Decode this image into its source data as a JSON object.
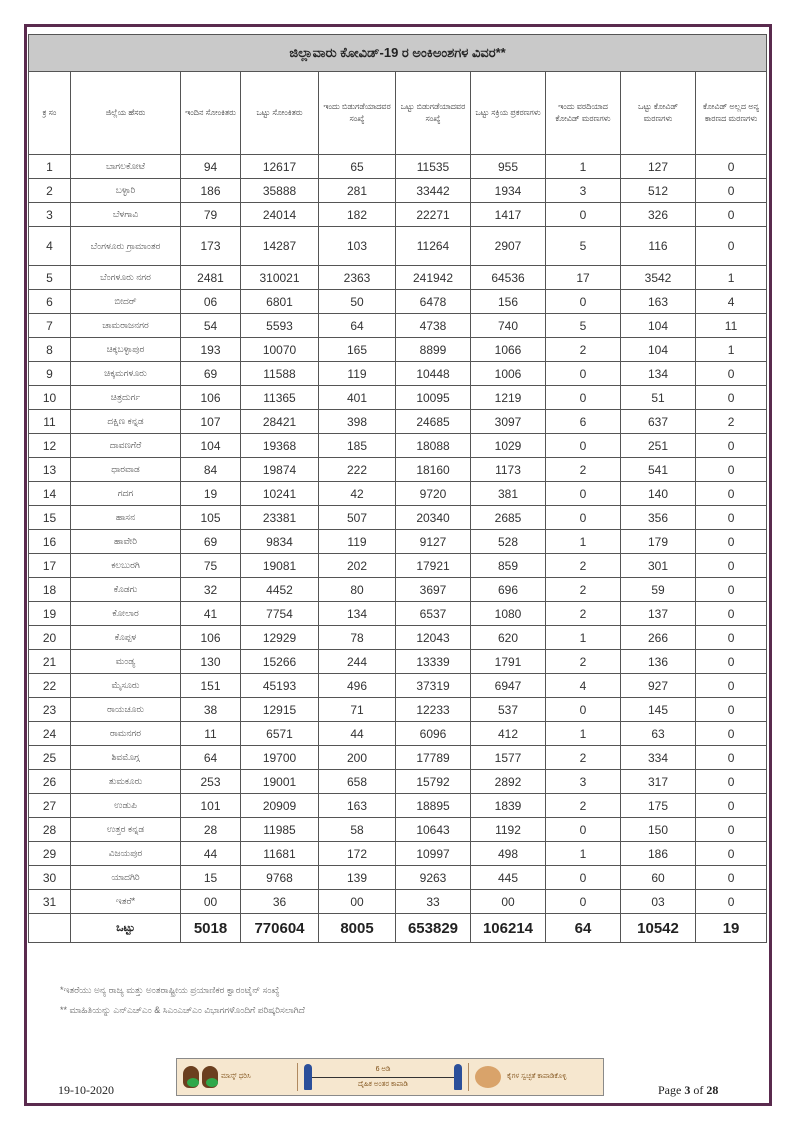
{
  "title": "ಜಿಲ್ಲಾವಾರು ಕೋವಿಡ್-19 ರ ಅಂಕಿಅಂಶಗಳ ವಿವರ**",
  "headers": [
    "ಕ್ರ ಸಂ",
    "ಜಿಲ್ಲೆಯ ಹೆಸರು",
    "ಇಂದಿನ ಸೋಂಕಿತರು",
    "ಒಟ್ಟು ಸೋಂಕಿತರು",
    "ಇಂದು ಬಿಡುಗಡೆಯಾದವರ ಸಂಖ್ಯೆ",
    "ಒಟ್ಟು ಬಿಡುಗಡೆಯಾದವರ ಸಂಖ್ಯೆ",
    "ಒಟ್ಟು ಸಕ್ರಿಯ ಪ್ರಕರಣಗಳು",
    "ಇಂದು ವರದಿಯಾದ ಕೋವಿಡ್ ಮರಣಗಳು",
    "ಒಟ್ಟು ಕೋವಿಡ್ ಮರಣಗಳು",
    "ಕೋವಿಡ್ ಅಲ್ಲದ ಅನ್ಯ ಕಾರಣದ ಮರಣಗಳು"
  ],
  "rows": [
    [
      "1",
      "ಬಾಗಲಕೋಟೆ",
      "94",
      "12617",
      "65",
      "11535",
      "955",
      "1",
      "127",
      "0"
    ],
    [
      "2",
      "ಬಳ್ಳಾರಿ",
      "186",
      "35888",
      "281",
      "33442",
      "1934",
      "3",
      "512",
      "0"
    ],
    [
      "3",
      "ಬೆಳಗಾವಿ",
      "79",
      "24014",
      "182",
      "22271",
      "1417",
      "0",
      "326",
      "0"
    ],
    [
      "4",
      "ಬೆಂಗಳೂರು ಗ್ರಾಮಾಂತರ",
      "173",
      "14287",
      "103",
      "11264",
      "2907",
      "5",
      "116",
      "0"
    ],
    [
      "5",
      "ಬೆಂಗಳೂರು ನಗರ",
      "2481",
      "310021",
      "2363",
      "241942",
      "64536",
      "17",
      "3542",
      "1"
    ],
    [
      "6",
      "ಬೀದರ್",
      "06",
      "6801",
      "50",
      "6478",
      "156",
      "0",
      "163",
      "4"
    ],
    [
      "7",
      "ಚಾಮರಾಜನಗರ",
      "54",
      "5593",
      "64",
      "4738",
      "740",
      "5",
      "104",
      "11"
    ],
    [
      "8",
      "ಚಿಕ್ಕಬಳ್ಳಾಪುರ",
      "193",
      "10070",
      "165",
      "8899",
      "1066",
      "2",
      "104",
      "1"
    ],
    [
      "9",
      "ಚಿಕ್ಕಮಗಳೂರು",
      "69",
      "11588",
      "119",
      "10448",
      "1006",
      "0",
      "134",
      "0"
    ],
    [
      "10",
      "ಚಿತ್ರದುರ್ಗ",
      "106",
      "11365",
      "401",
      "10095",
      "1219",
      "0",
      "51",
      "0"
    ],
    [
      "11",
      "ದಕ್ಷಿಣ ಕನ್ನಡ",
      "107",
      "28421",
      "398",
      "24685",
      "3097",
      "6",
      "637",
      "2"
    ],
    [
      "12",
      "ದಾವಣಗೆರೆ",
      "104",
      "19368",
      "185",
      "18088",
      "1029",
      "0",
      "251",
      "0"
    ],
    [
      "13",
      "ಧಾರವಾಡ",
      "84",
      "19874",
      "222",
      "18160",
      "1173",
      "2",
      "541",
      "0"
    ],
    [
      "14",
      "ಗದಗ",
      "19",
      "10241",
      "42",
      "9720",
      "381",
      "0",
      "140",
      "0"
    ],
    [
      "15",
      "ಹಾಸನ",
      "105",
      "23381",
      "507",
      "20340",
      "2685",
      "0",
      "356",
      "0"
    ],
    [
      "16",
      "ಹಾವೇರಿ",
      "69",
      "9834",
      "119",
      "9127",
      "528",
      "1",
      "179",
      "0"
    ],
    [
      "17",
      "ಕಲಬುರಗಿ",
      "75",
      "19081",
      "202",
      "17921",
      "859",
      "2",
      "301",
      "0"
    ],
    [
      "18",
      "ಕೊಡಗು",
      "32",
      "4452",
      "80",
      "3697",
      "696",
      "2",
      "59",
      "0"
    ],
    [
      "19",
      "ಕೋಲಾರ",
      "41",
      "7754",
      "134",
      "6537",
      "1080",
      "2",
      "137",
      "0"
    ],
    [
      "20",
      "ಕೊಪ್ಪಳ",
      "106",
      "12929",
      "78",
      "12043",
      "620",
      "1",
      "266",
      "0"
    ],
    [
      "21",
      "ಮಂಡ್ಯ",
      "130",
      "15266",
      "244",
      "13339",
      "1791",
      "2",
      "136",
      "0"
    ],
    [
      "22",
      "ಮೈಸೂರು",
      "151",
      "45193",
      "496",
      "37319",
      "6947",
      "4",
      "927",
      "0"
    ],
    [
      "23",
      "ರಾಯಚೂರು",
      "38",
      "12915",
      "71",
      "12233",
      "537",
      "0",
      "145",
      "0"
    ],
    [
      "24",
      "ರಾಮನಗರ",
      "11",
      "6571",
      "44",
      "6096",
      "412",
      "1",
      "63",
      "0"
    ],
    [
      "25",
      "ಶಿವಮೊಗ್ಗ",
      "64",
      "19700",
      "200",
      "17789",
      "1577",
      "2",
      "334",
      "0"
    ],
    [
      "26",
      "ತುಮಕೂರು",
      "253",
      "19001",
      "658",
      "15792",
      "2892",
      "3",
      "317",
      "0"
    ],
    [
      "27",
      "ಉಡುಪಿ",
      "101",
      "20909",
      "163",
      "18895",
      "1839",
      "2",
      "175",
      "0"
    ],
    [
      "28",
      "ಉತ್ತರ ಕನ್ನಡ",
      "28",
      "11985",
      "58",
      "10643",
      "1192",
      "0",
      "150",
      "0"
    ],
    [
      "29",
      "ವಿಜಯಪುರ",
      "44",
      "11681",
      "172",
      "10997",
      "498",
      "1",
      "186",
      "0"
    ],
    [
      "30",
      "ಯಾದಗಿರಿ",
      "15",
      "9768",
      "139",
      "9263",
      "445",
      "0",
      "60",
      "0"
    ],
    [
      "31",
      "ಇತರೆ*",
      "00",
      "36",
      "00",
      "33",
      "00",
      "0",
      "03",
      "0"
    ]
  ],
  "total": [
    "",
    "ಒಟ್ಟು",
    "5018",
    "770604",
    "8005",
    "653829",
    "106214",
    "64",
    "10542",
    "19"
  ],
  "notes": [
    "*ಇತರೆಯು ಅನ್ಯ ರಾಜ್ಯ ಮತ್ತು ಅಂತರಾಷ್ಟ್ರೀಯ ಪ್ರಯಾಣಿಕರ ಕ್ವಾರಂಟೈನ್ ಸಂಖ್ಯೆ",
    "** ಮಾಹಿತಿಯನ್ನು ಎನ್‌ಎಚ್‌ಎಂ & ಸಿಎಂಎಚ್‌ಎಂ ವಿಭಾಗಗಳೊಂದಿಗೆ ಪರಿಷ್ಕರಿಸಲಾಗಿದೆ"
  ],
  "banner": {
    "mask_text": "ಮಾಸ್ಕ್ ಧರಿಸಿ",
    "distance_label": "6 ಅಡಿ",
    "distance_text": "ದೈಹಿಕ ಅಂತರ ಕಾಪಾಡಿ",
    "wash_text": "ಕೈಗಳ ಸ್ವಚ್ಛತೆ ಕಾಪಾಡಿಕೊಳ್ಳಿ"
  },
  "footer": {
    "date": "19-10-2020",
    "page_prefix": "Page",
    "page_current": "3",
    "page_of": "of",
    "page_total": "28"
  },
  "colors": {
    "frame": "#5a2a4e",
    "title_bg": "#c9c9c9",
    "banner_bg": "#f6e7cf"
  }
}
